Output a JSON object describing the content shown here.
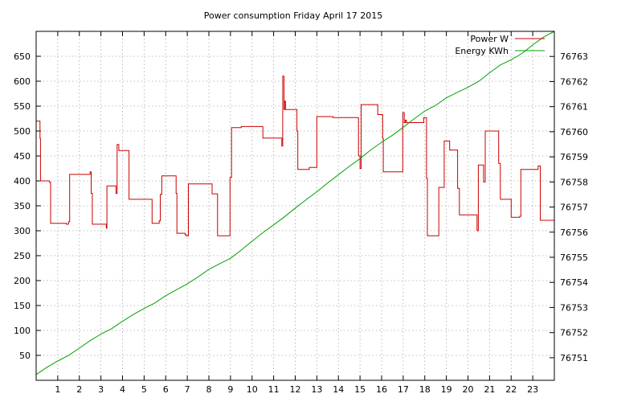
{
  "chart_data": {
    "type": "line",
    "title": "Power consumption Friday April 17 2015",
    "xlabel": "",
    "ylabel": "",
    "y2label": "",
    "x_range": [
      0,
      24
    ],
    "x_ticks": [
      1,
      2,
      3,
      4,
      5,
      6,
      7,
      8,
      9,
      10,
      11,
      12,
      13,
      14,
      15,
      16,
      17,
      18,
      19,
      20,
      21,
      22,
      23
    ],
    "ylim": [
      0,
      700
    ],
    "y_ticks": [
      50,
      100,
      150,
      200,
      250,
      300,
      350,
      400,
      450,
      500,
      550,
      600,
      650
    ],
    "y2lim": [
      76750.1,
      76764.0
    ],
    "y2_ticks": [
      76751,
      76752,
      76753,
      76754,
      76755,
      76756,
      76757,
      76758,
      76759,
      76760,
      76761,
      76762,
      76763
    ],
    "grid": true,
    "legend_position": "top-right",
    "series": [
      {
        "name": "Power W",
        "axis": "left",
        "color": "#cc0000",
        "step": true,
        "points": [
          [
            0.0,
            520
          ],
          [
            0.18,
            485
          ],
          [
            0.2,
            400
          ],
          [
            0.62,
            397
          ],
          [
            0.67,
            315
          ],
          [
            1.4,
            313
          ],
          [
            1.5,
            318
          ],
          [
            1.55,
            413
          ],
          [
            2.45,
            413
          ],
          [
            2.5,
            418
          ],
          [
            2.55,
            375
          ],
          [
            2.6,
            313
          ],
          [
            3.25,
            305
          ],
          [
            3.28,
            390
          ],
          [
            3.7,
            375
          ],
          [
            3.75,
            473
          ],
          [
            3.83,
            461
          ],
          [
            4.25,
            461
          ],
          [
            4.3,
            363
          ],
          [
            5.35,
            363
          ],
          [
            5.37,
            315
          ],
          [
            5.7,
            320
          ],
          [
            5.75,
            373
          ],
          [
            5.82,
            410
          ],
          [
            6.45,
            410
          ],
          [
            6.48,
            375
          ],
          [
            6.52,
            295
          ],
          [
            6.9,
            292
          ],
          [
            6.95,
            290
          ],
          [
            7.05,
            394
          ],
          [
            8.1,
            394
          ],
          [
            8.15,
            374
          ],
          [
            8.35,
            374
          ],
          [
            8.4,
            290
          ],
          [
            8.95,
            290
          ],
          [
            8.98,
            407
          ],
          [
            9.05,
            507
          ],
          [
            9.42,
            507
          ],
          [
            9.5,
            509
          ],
          [
            10.45,
            509
          ],
          [
            10.5,
            486
          ],
          [
            11.35,
            486
          ],
          [
            11.38,
            470
          ],
          [
            11.42,
            610
          ],
          [
            11.48,
            543
          ],
          [
            11.5,
            560
          ],
          [
            11.55,
            543
          ],
          [
            12.05,
            543
          ],
          [
            12.08,
            500
          ],
          [
            12.12,
            423
          ],
          [
            12.62,
            423
          ],
          [
            12.65,
            427
          ],
          [
            12.95,
            427
          ],
          [
            13.0,
            529
          ],
          [
            13.7,
            529
          ],
          [
            13.75,
            527
          ],
          [
            14.9,
            527
          ],
          [
            14.93,
            450
          ],
          [
            15.0,
            425
          ],
          [
            15.05,
            553
          ],
          [
            15.8,
            553
          ],
          [
            15.82,
            533
          ],
          [
            16.0,
            533
          ],
          [
            16.05,
            485
          ],
          [
            16.08,
            418
          ],
          [
            16.95,
            418
          ],
          [
            16.98,
            537
          ],
          [
            17.05,
            517
          ],
          [
            17.1,
            522
          ],
          [
            17.15,
            517
          ],
          [
            17.9,
            517
          ],
          [
            17.95,
            527
          ],
          [
            18.05,
            527
          ],
          [
            18.08,
            405
          ],
          [
            18.12,
            290
          ],
          [
            18.6,
            290
          ],
          [
            18.65,
            387
          ],
          [
            18.85,
            387
          ],
          [
            18.9,
            480
          ],
          [
            19.1,
            480
          ],
          [
            19.15,
            462
          ],
          [
            19.5,
            462
          ],
          [
            19.52,
            385
          ],
          [
            19.6,
            332
          ],
          [
            20.4,
            332
          ],
          [
            20.42,
            300
          ],
          [
            20.48,
            432
          ],
          [
            20.7,
            432
          ],
          [
            20.72,
            398
          ],
          [
            20.8,
            500
          ],
          [
            21.4,
            500
          ],
          [
            21.42,
            435
          ],
          [
            21.5,
            363
          ],
          [
            21.95,
            363
          ],
          [
            22.0,
            327
          ],
          [
            22.35,
            327
          ],
          [
            22.4,
            329
          ],
          [
            22.45,
            423
          ],
          [
            23.2,
            423
          ],
          [
            23.25,
            430
          ],
          [
            23.35,
            321
          ],
          [
            23.98,
            321
          ]
        ]
      },
      {
        "name": "Energy KWh",
        "axis": "right",
        "color": "#00a000",
        "step": false,
        "points": [
          [
            0.0,
            76750.33
          ],
          [
            0.5,
            76750.62
          ],
          [
            1.0,
            76750.87
          ],
          [
            1.5,
            76751.09
          ],
          [
            2.0,
            76751.38
          ],
          [
            2.5,
            76751.68
          ],
          [
            3.0,
            76751.94
          ],
          [
            3.5,
            76752.16
          ],
          [
            4.0,
            76752.45
          ],
          [
            4.5,
            76752.72
          ],
          [
            5.0,
            76752.96
          ],
          [
            5.5,
            76753.18
          ],
          [
            6.0,
            76753.47
          ],
          [
            6.5,
            76753.71
          ],
          [
            7.0,
            76753.94
          ],
          [
            7.5,
            76754.22
          ],
          [
            8.0,
            76754.52
          ],
          [
            8.5,
            76754.74
          ],
          [
            9.0,
            76754.96
          ],
          [
            9.5,
            76755.29
          ],
          [
            10.0,
            76755.64
          ],
          [
            10.5,
            76755.98
          ],
          [
            11.0,
            76756.29
          ],
          [
            11.5,
            76756.61
          ],
          [
            12.0,
            76756.96
          ],
          [
            12.5,
            76757.29
          ],
          [
            13.0,
            76757.61
          ],
          [
            13.5,
            76757.96
          ],
          [
            14.0,
            76758.29
          ],
          [
            14.5,
            76758.62
          ],
          [
            15.0,
            76758.93
          ],
          [
            15.5,
            76759.28
          ],
          [
            16.0,
            76759.58
          ],
          [
            16.5,
            76759.86
          ],
          [
            17.0,
            76760.18
          ],
          [
            17.5,
            76760.51
          ],
          [
            18.0,
            76760.83
          ],
          [
            18.5,
            76761.05
          ],
          [
            19.0,
            76761.35
          ],
          [
            19.5,
            76761.57
          ],
          [
            20.0,
            76761.77
          ],
          [
            20.5,
            76762.01
          ],
          [
            21.0,
            76762.35
          ],
          [
            21.5,
            76762.66
          ],
          [
            22.0,
            76762.87
          ],
          [
            22.5,
            76763.12
          ],
          [
            23.0,
            76763.46
          ],
          [
            23.5,
            76763.77
          ],
          [
            24.0,
            76764.0
          ]
        ]
      }
    ]
  }
}
